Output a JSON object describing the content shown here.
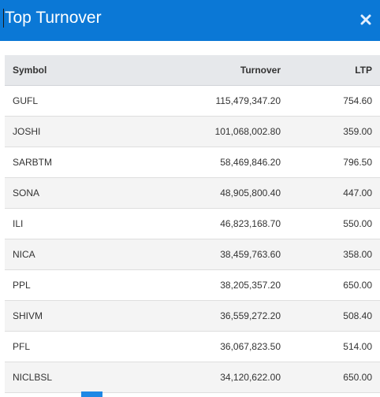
{
  "dialog": {
    "title": "Top Turnover",
    "close_icon": "close-icon",
    "accent_color": "#0b78d6"
  },
  "table": {
    "columns": [
      "Symbol",
      "Turnover",
      "LTP"
    ],
    "rows": [
      [
        "GUFL",
        "115,479,347.20",
        "754.60"
      ],
      [
        "JOSHI",
        "101,068,002.80",
        "359.00"
      ],
      [
        "SARBTM",
        "58,469,846.20",
        "796.50"
      ],
      [
        "SONA",
        "48,905,800.40",
        "447.00"
      ],
      [
        "ILI",
        "46,823,168.70",
        "550.00"
      ],
      [
        "NICA",
        "38,459,763.60",
        "358.00"
      ],
      [
        "PPL",
        "38,205,357.20",
        "650.00"
      ],
      [
        "SHIVM",
        "36,559,272.20",
        "508.40"
      ],
      [
        "PFL",
        "36,067,823.50",
        "514.00"
      ],
      [
        "NICLBSL",
        "34,120,622.00",
        "650.00"
      ]
    ]
  }
}
